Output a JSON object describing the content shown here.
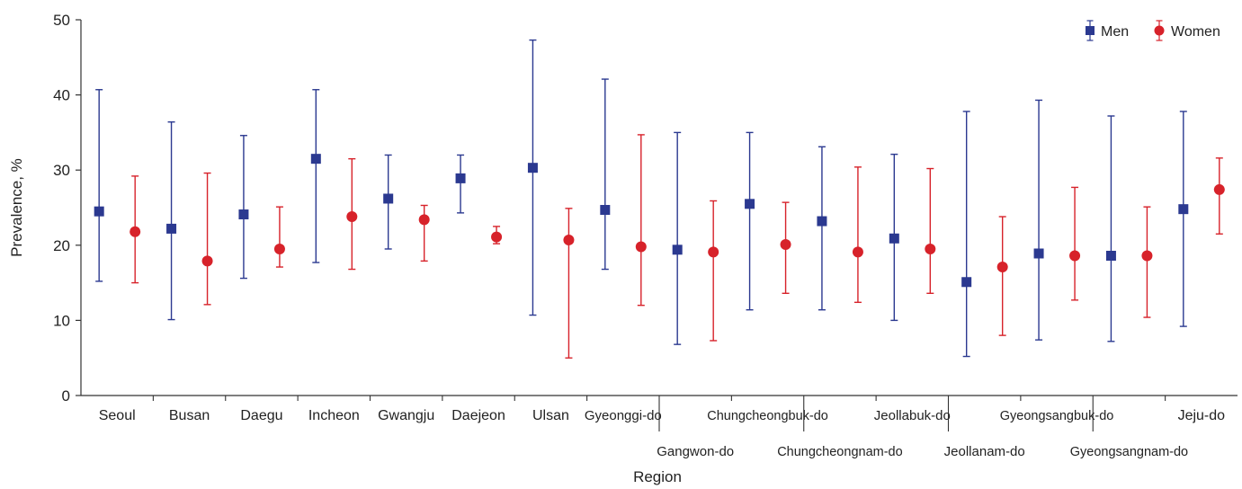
{
  "chart_data": {
    "type": "scatter",
    "title": "",
    "xlabel": "Region",
    "ylabel": "Prevalence, %",
    "ylim": [
      0,
      50
    ],
    "yticks": [
      0,
      10,
      20,
      30,
      40,
      50
    ],
    "grid": false,
    "legend_position": "top-right",
    "categories": [
      "Seoul",
      "Busan",
      "Daegu",
      "Incheon",
      "Gwangju",
      "Daejeon",
      "Ulsan",
      "Gyeonggi-do",
      "Gangwon-do",
      "Chungcheongbuk-do",
      "Chungcheongnam-do",
      "Jeollabuk-do",
      "Jeollanam-do",
      "Gyeongsangbuk-do",
      "Gyeongsangnam-do",
      "Jeju-do"
    ],
    "series": [
      {
        "name": "Men",
        "color": "#2b3990",
        "marker": "square",
        "values": [
          24.5,
          22.2,
          24.1,
          31.5,
          26.2,
          28.9,
          30.3,
          24.7,
          19.4,
          25.5,
          23.2,
          20.9,
          15.1,
          18.9,
          18.6,
          24.8
        ],
        "lower": [
          15.2,
          10.1,
          15.6,
          17.7,
          19.5,
          24.3,
          10.7,
          16.8,
          6.8,
          11.4,
          11.4,
          10.0,
          5.2,
          7.4,
          7.2,
          9.2
        ],
        "upper": [
          40.7,
          36.4,
          34.6,
          40.7,
          32.0,
          32.0,
          47.3,
          42.1,
          35.0,
          35.0,
          33.1,
          32.1,
          37.8,
          39.3,
          37.2,
          37.8
        ]
      },
      {
        "name": "Women",
        "color": "#d7222a",
        "marker": "circle",
        "values": [
          21.8,
          17.9,
          19.5,
          23.8,
          23.4,
          21.1,
          20.7,
          19.8,
          19.1,
          20.1,
          19.1,
          19.5,
          17.1,
          18.6,
          18.6,
          27.4
        ],
        "lower": [
          15.0,
          12.1,
          17.1,
          16.8,
          17.9,
          20.2,
          5.0,
          12.0,
          7.3,
          13.6,
          12.4,
          13.6,
          8.0,
          12.7,
          10.4,
          21.5
        ],
        "upper": [
          29.2,
          29.6,
          25.1,
          31.5,
          25.3,
          22.5,
          24.9,
          34.7,
          25.9,
          25.7,
          30.4,
          30.2,
          23.8,
          27.7,
          25.1,
          31.6
        ]
      }
    ]
  }
}
